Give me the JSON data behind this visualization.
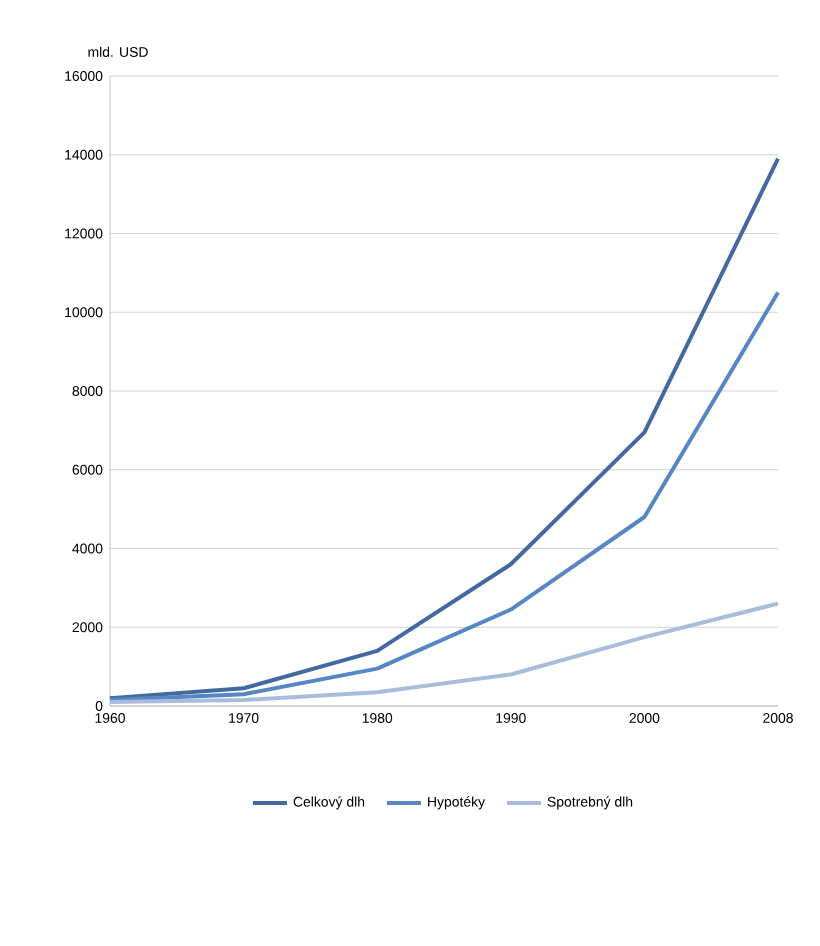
{
  "chart_data": {
    "type": "line",
    "ylabel": "mld. USD",
    "categories": [
      "1960",
      "1970",
      "1980",
      "1990",
      "2000",
      "2008"
    ],
    "series": [
      {
        "name": "Celkový dlh",
        "color": "#426aa0",
        "values": [
          200,
          450,
          1400,
          3600,
          6950,
          13900
        ]
      },
      {
        "name": "Hypotéky",
        "color": "#5686c4",
        "values": [
          150,
          300,
          950,
          2450,
          4800,
          10500
        ]
      },
      {
        "name": "Spotrebný dlh",
        "color": "#a9bcdb",
        "values": [
          100,
          150,
          350,
          800,
          1750,
          2600
        ]
      }
    ],
    "ylim": [
      0,
      16000
    ],
    "yticks": [
      0,
      2000,
      4000,
      6000,
      8000,
      10000,
      12000,
      14000,
      16000
    ],
    "grid": "y",
    "legend": "bottom"
  }
}
